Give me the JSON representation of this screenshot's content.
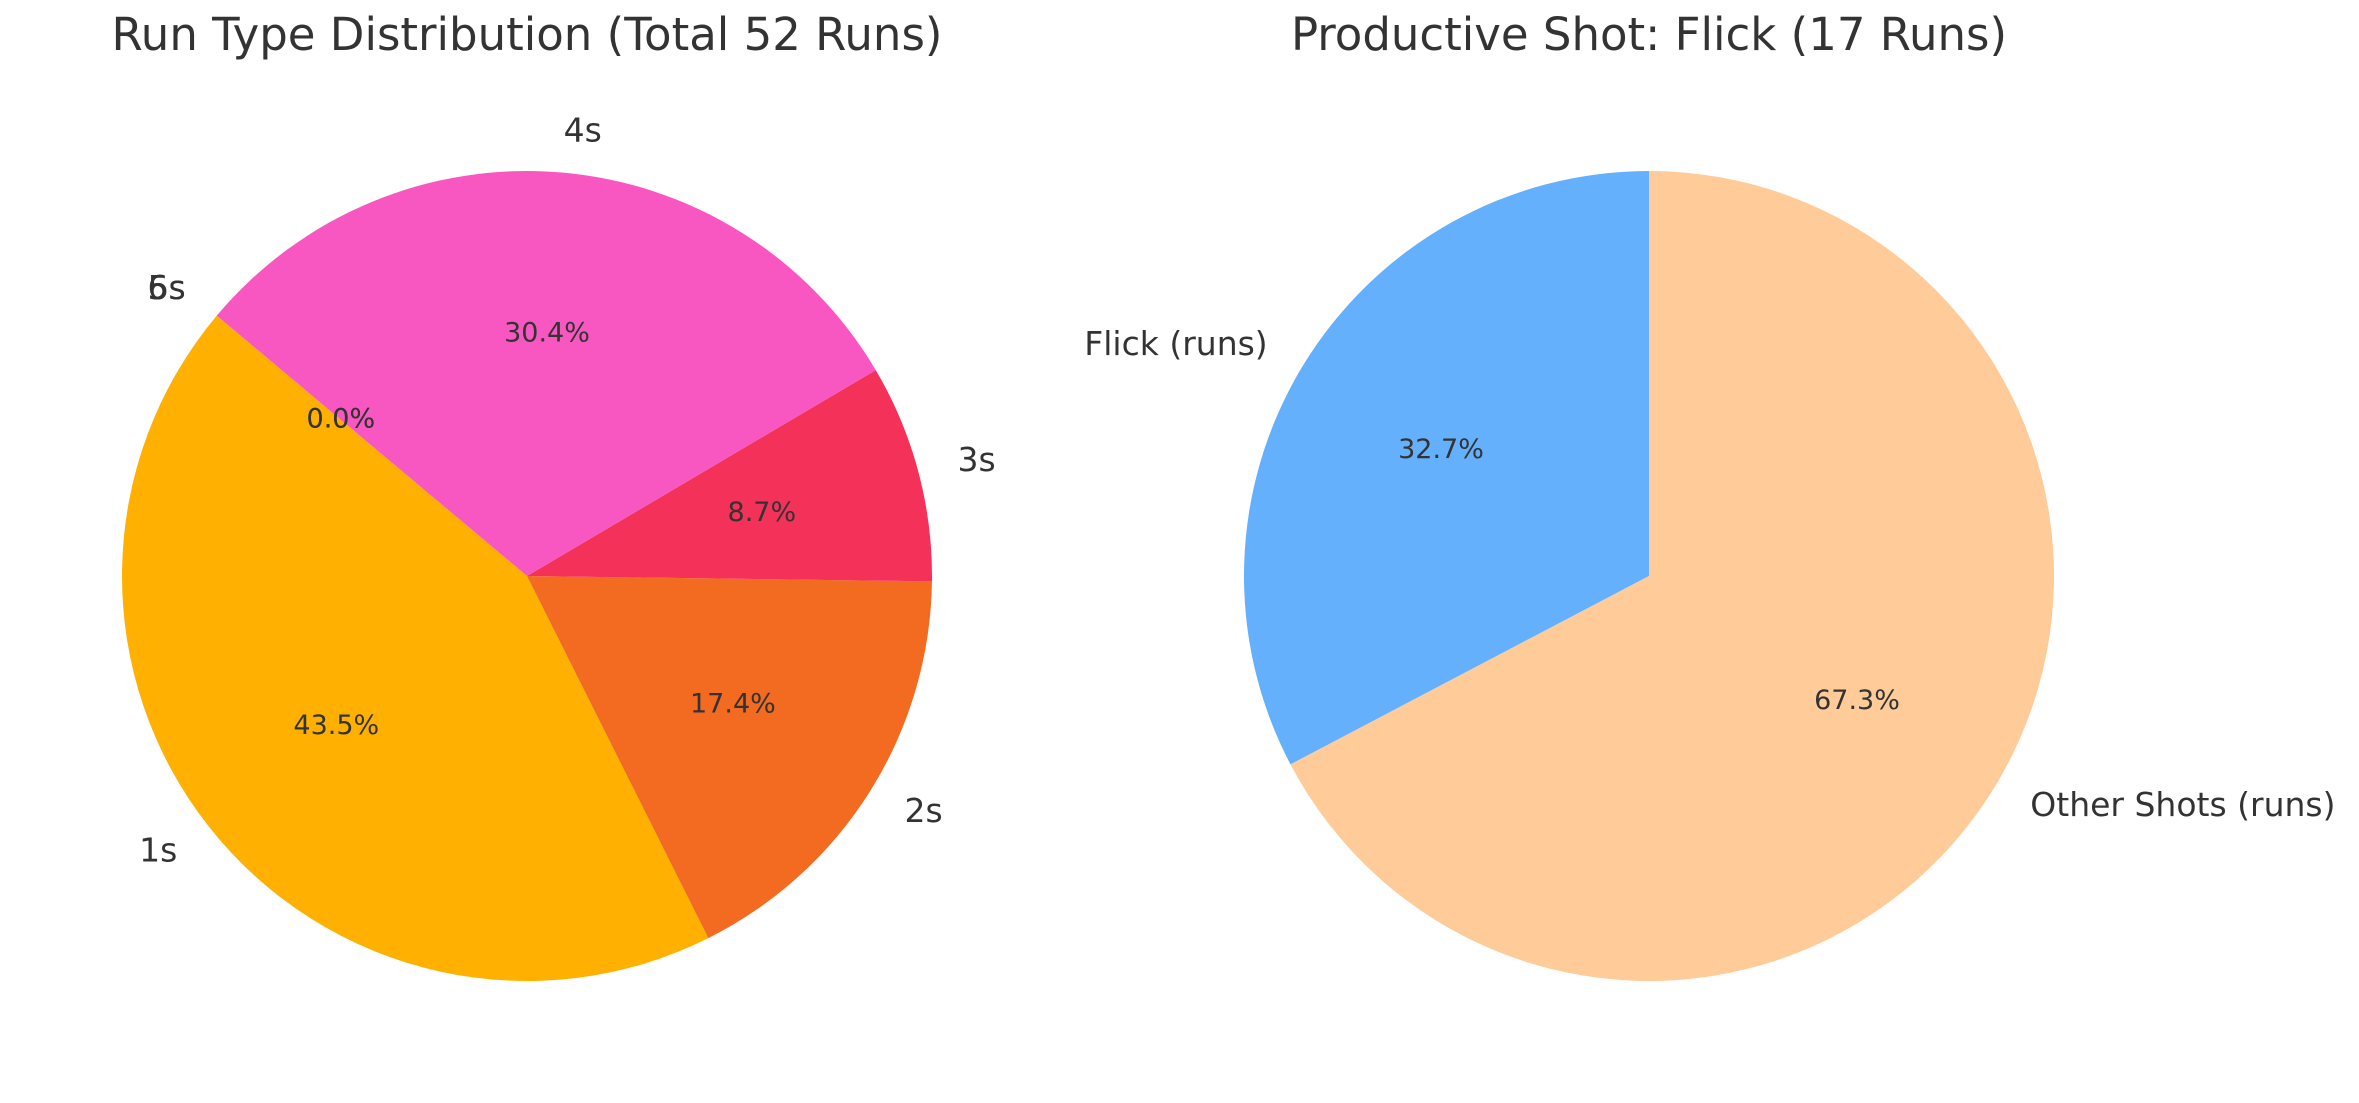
{
  "chart_data": [
    {
      "type": "pie",
      "title": "Run Type Distribution (Total 52 Runs)",
      "categories": [
        "1s",
        "2s",
        "3s",
        "4s",
        "5s",
        "6s"
      ],
      "values": [
        43.5,
        17.4,
        8.7,
        30.4,
        0.0,
        0.0
      ],
      "value_labels": [
        "43.5%",
        "17.4%",
        "8.7%",
        "30.4%",
        "0.0%",
        "0.0%"
      ],
      "colors": [
        "#ffb000",
        "#f26b21",
        "#f43158",
        "#f857c1",
        "#5c6bc0",
        "#26a69a"
      ],
      "startangle": 140
    },
    {
      "type": "pie",
      "title": "Productive Shot: Flick (17 Runs)",
      "categories": [
        "Flick (runs)",
        "Other Shots (runs)"
      ],
      "values": [
        32.7,
        67.3
      ],
      "value_labels": [
        "32.7%",
        "67.3%"
      ],
      "colors": [
        "#64b0fc",
        "#fecb99"
      ],
      "startangle": 90
    }
  ]
}
